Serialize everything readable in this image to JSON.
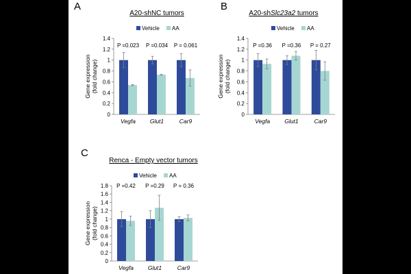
{
  "colors": {
    "vehicle": "#2e4b9b",
    "aa": "#a6d6d2",
    "errorbar": "#7f7f7f",
    "axis": "#7f7f7f"
  },
  "chart_data": [
    {
      "panel": "A",
      "type": "bar",
      "title_parts": [
        "A20-shNC tumors"
      ],
      "ylabel": [
        "Gene expression",
        "(fold change)"
      ],
      "categories": [
        "Vegfa",
        "Glut1",
        "Car9"
      ],
      "ylim": [
        0,
        1.4
      ],
      "yticks": [
        "0",
        "0.2",
        "0.4",
        "0.6",
        "0.8",
        "1",
        "1.2",
        "1.4"
      ],
      "series": [
        {
          "name": "Vehicle",
          "values": [
            1.0,
            1.0,
            1.0
          ],
          "errors": [
            0.14,
            0.07,
            0.12
          ]
        },
        {
          "name": "AA",
          "values": [
            0.54,
            0.73,
            0.67
          ],
          "errors": [
            0.01,
            0.01,
            0.15
          ]
        }
      ],
      "pvalues": [
        "P =0.023",
        "P =0.034",
        "P = 0.061"
      ]
    },
    {
      "panel": "B",
      "type": "bar",
      "title_parts": [
        "A20-sh",
        "Slc23a2",
        " tumors"
      ],
      "ylabel": [
        "Gene expression",
        "(fold change)"
      ],
      "categories": [
        "Vegfa",
        "Glut1",
        "Car9"
      ],
      "ylim": [
        0,
        1.4
      ],
      "yticks": [
        "0",
        "0.2",
        "0.4",
        "0.6",
        "0.8",
        "1",
        "1.2",
        "1.4"
      ],
      "series": [
        {
          "name": "Vehicle",
          "values": [
            1.0,
            1.0,
            1.0
          ],
          "errors": [
            0.12,
            0.08,
            0.18
          ]
        },
        {
          "name": "AA",
          "values": [
            0.93,
            1.08,
            0.8
          ],
          "errors": [
            0.09,
            0.08,
            0.17
          ]
        }
      ],
      "pvalues": [
        "P =0.36",
        "P =0.36",
        "P = 0.27"
      ]
    },
    {
      "panel": "C",
      "type": "bar",
      "title_parts": [
        "Renca - Empty vector tumors"
      ],
      "ylabel": [
        "Gene expression",
        "(fold change)"
      ],
      "categories": [
        "Vegfa",
        "Glut1",
        "Car9"
      ],
      "ylim": [
        0,
        1.8
      ],
      "yticks": [
        "0",
        "0.2",
        "0.4",
        "0.6",
        "0.8",
        "1",
        "1.2",
        "1.4",
        "1.6",
        "1.8"
      ],
      "series": [
        {
          "name": "Vehicle",
          "values": [
            1.0,
            1.0,
            1.0
          ],
          "errors": [
            0.18,
            0.2,
            0.06
          ]
        },
        {
          "name": "AA",
          "values": [
            0.96,
            1.27,
            1.03
          ],
          "errors": [
            0.11,
            0.3,
            0.07
          ]
        }
      ],
      "pvalues": [
        "P =0.42",
        "P =0.29",
        "P = 0.36"
      ]
    }
  ]
}
